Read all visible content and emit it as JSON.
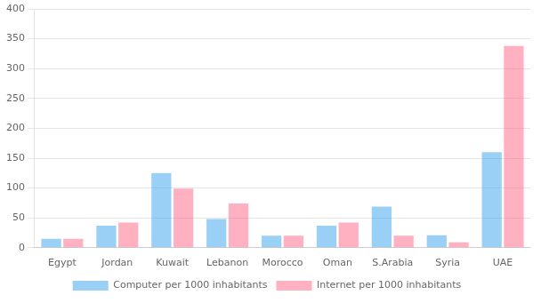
{
  "chart_data": {
    "type": "bar",
    "categories": [
      "Egypt",
      "Jordan",
      "Kuwait",
      "Lebanon",
      "Morocco",
      "Oman",
      "S.Arabia",
      "Syria",
      "UAE"
    ],
    "series": [
      {
        "name": "Computer per 1000 inhabitants",
        "values": [
          15,
          37,
          125,
          48,
          20,
          37,
          69,
          21,
          160
        ]
      },
      {
        "name": "Internet per 1000 inhabitants",
        "values": [
          15,
          42,
          99,
          74,
          20,
          42,
          20,
          9,
          338
        ]
      }
    ],
    "ylim": [
      0,
      400
    ],
    "yticks": [
      0,
      50,
      100,
      150,
      200,
      250,
      300,
      350,
      400
    ],
    "grid": true,
    "legend": "bottom"
  }
}
